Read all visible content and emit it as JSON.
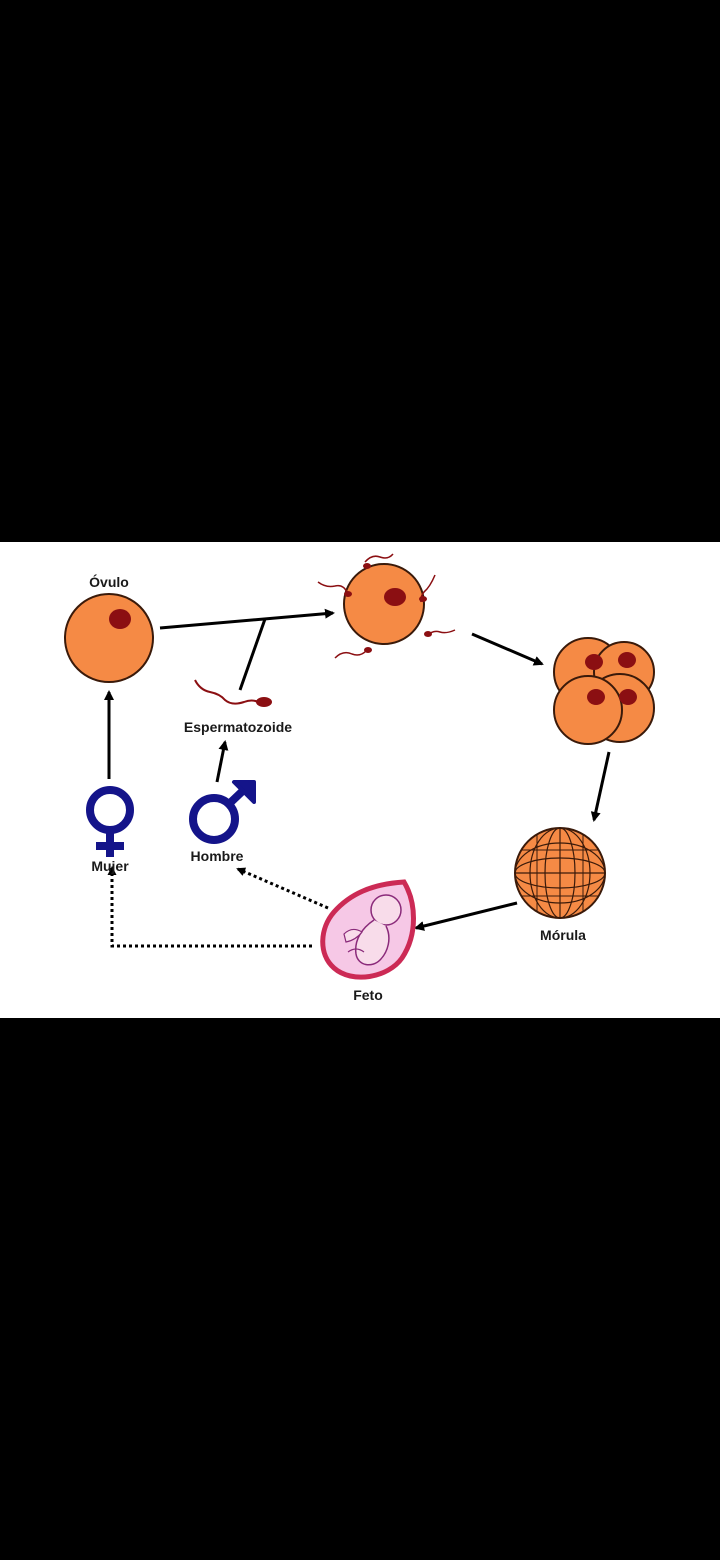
{
  "labels": {
    "ovulo": "Óvulo",
    "espermatozoide": "Espermatozoide",
    "mujer": "Mujer",
    "hombre": "Hombre",
    "morula": "Mórula",
    "feto": "Feto"
  },
  "icons": {
    "female": "female-symbol",
    "male": "male-symbol"
  },
  "colors": {
    "cell_fill": "#f58a45",
    "nucleus": "#8b0f12",
    "symbol": "#14148a",
    "arrow": "#000000",
    "fetus_outline": "#cc2a55",
    "fetus_body": "#f6c8e6"
  }
}
